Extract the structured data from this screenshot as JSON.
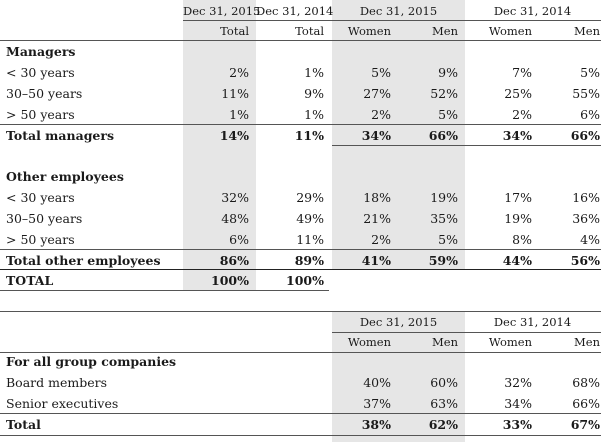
{
  "table1": {
    "period_headers": [
      "Dec 31, 2015",
      "Dec 31, 2014",
      "Dec 31, 2015",
      "Dec 31, 2014"
    ],
    "col_headers": [
      "Total",
      "Total",
      "Women",
      "Men",
      "Women",
      "Men"
    ],
    "managers": {
      "heading": "Managers",
      "rows": [
        {
          "label": "< 30 years",
          "values": [
            "2%",
            "1%",
            "5%",
            "9%",
            "7%",
            "5%"
          ]
        },
        {
          "label": "30–50 years",
          "values": [
            "11%",
            "9%",
            "27%",
            "52%",
            "25%",
            "55%"
          ]
        },
        {
          "label": "> 50 years",
          "values": [
            "1%",
            "1%",
            "2%",
            "5%",
            "2%",
            "6%"
          ]
        }
      ],
      "total": {
        "label": "Total managers",
        "values": [
          "14%",
          "11%",
          "34%",
          "66%",
          "34%",
          "66%"
        ]
      }
    },
    "other": {
      "heading": "Other employees",
      "rows": [
        {
          "label": "< 30 years",
          "values": [
            "32%",
            "29%",
            "18%",
            "19%",
            "17%",
            "16%"
          ]
        },
        {
          "label": "30–50 years",
          "values": [
            "48%",
            "49%",
            "21%",
            "35%",
            "19%",
            "36%"
          ]
        },
        {
          "label": "> 50 years",
          "values": [
            "6%",
            "11%",
            "2%",
            "5%",
            "8%",
            "4%"
          ]
        }
      ],
      "total": {
        "label": "Total other employees",
        "values": [
          "86%",
          "89%",
          "41%",
          "59%",
          "44%",
          "56%"
        ]
      }
    },
    "grand_total": {
      "label": "TOTAL",
      "values": [
        "100%",
        "100%"
      ]
    }
  },
  "table2": {
    "period_headers": [
      "Dec 31, 2015",
      "Dec 31, 2014"
    ],
    "col_headers": [
      "Women",
      "Men",
      "Women",
      "Men"
    ],
    "heading": "For all group companies",
    "rows": [
      {
        "label": "Board members",
        "values": [
          "40%",
          "60%",
          "32%",
          "68%"
        ]
      },
      {
        "label": "Senior executives",
        "values": [
          "37%",
          "63%",
          "34%",
          "66%"
        ]
      }
    ],
    "total": {
      "label": "Total",
      "values": [
        "38%",
        "62%",
        "33%",
        "67%"
      ]
    }
  },
  "colors": {
    "shade": "#e6e6e6",
    "rule": "#555555"
  }
}
